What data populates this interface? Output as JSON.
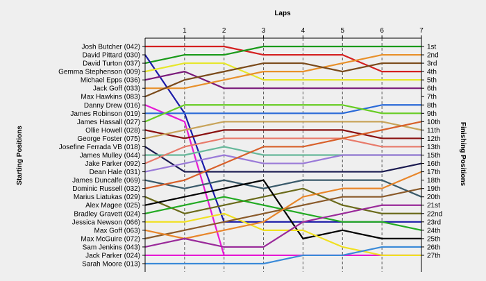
{
  "chart_data": {
    "type": "line",
    "title": "Laps",
    "ylabel_left": "Starting Positions",
    "ylabel_right": "Finishing Positions",
    "x": [
      0,
      1,
      2,
      3,
      4,
      5,
      6,
      7
    ],
    "x_tick_labels": [
      "1",
      "2",
      "3",
      "4",
      "5",
      "6",
      "7"
    ],
    "ylim": [
      1,
      27
    ],
    "finish_labels": [
      "1st",
      "2nd",
      "3rd",
      "4th",
      "5th",
      "6th",
      "7th",
      "8th",
      "9th",
      "10th",
      "11th",
      "12th",
      "13th",
      "15th",
      "16th",
      "17th",
      "18th",
      "19th",
      "20th",
      "21st",
      "22nd",
      "23rd",
      "24th",
      "25th",
      "26th",
      "27th"
    ],
    "finish_label_rows": [
      1,
      2,
      3,
      4,
      5,
      6,
      7,
      8,
      9,
      10,
      11,
      12,
      13,
      14,
      15,
      16,
      17,
      18,
      19,
      20,
      21,
      22,
      23,
      24,
      25,
      26
    ],
    "series": [
      {
        "name": "Josh Butcher (042)",
        "color": "#d42020",
        "positions": [
          1,
          1,
          1,
          2,
          2,
          2,
          4,
          4
        ]
      },
      {
        "name": "David Turton (037)",
        "color": "#1a9a1a",
        "positions": [
          3,
          2,
          2,
          1,
          1,
          1,
          1,
          1
        ]
      },
      {
        "name": "David Pittard (030)",
        "color": "#1a1aa8",
        "positions": [
          2,
          9,
          22,
          22,
          22,
          22,
          22,
          22
        ]
      },
      {
        "name": "Gemma Stephenson (009)",
        "color": "#e6e62a",
        "positions": [
          4,
          3,
          3,
          5,
          5,
          5,
          5,
          5
        ]
      },
      {
        "name": "Michael Epps (036)",
        "color": "#7a1a7a",
        "positions": [
          5,
          4,
          6,
          6,
          6,
          6,
          6,
          6
        ]
      },
      {
        "name": "Jack Goff (033)",
        "color": "#e8902a",
        "positions": [
          6,
          6,
          5,
          4,
          4,
          3,
          2,
          2
        ]
      },
      {
        "name": "Max Hawkins (083)",
        "color": "#7a4a1a",
        "positions": [
          7,
          5,
          4,
          3,
          3,
          4,
          3,
          3
        ]
      },
      {
        "name": "Danny Drew (016)",
        "color": "#e61ad4",
        "positions": [
          8,
          10,
          26,
          26,
          26,
          26,
          26,
          26
        ]
      },
      {
        "name": "James Robinson (019)",
        "color": "#2a6ad8",
        "positions": [
          9,
          9,
          9,
          9,
          9,
          9,
          8,
          8
        ]
      },
      {
        "name": "James Hassall (027)",
        "color": "#66cc22",
        "positions": [
          10,
          8,
          8,
          8,
          8,
          8,
          9,
          9
        ]
      },
      {
        "name": "Ollie Howell (028)",
        "color": "#8a1010",
        "positions": [
          11,
          12,
          11,
          11,
          11,
          11,
          12,
          12
        ]
      },
      {
        "name": "George Foster (075)",
        "color": "#c8a45a",
        "positions": [
          12,
          11,
          10,
          10,
          10,
          10,
          10,
          11
        ]
      },
      {
        "name": "Josefine Ferrada VB (018)",
        "color": "#1a1a50",
        "positions": [
          13,
          16,
          16,
          16,
          16,
          16,
          16,
          15
        ]
      },
      {
        "name": "James Mulley (044)",
        "color": "#66b89a",
        "positions": [
          14,
          14,
          13,
          14,
          14,
          14,
          14,
          14
        ]
      },
      {
        "name": "Jake Parker (092)",
        "color": "#e87a6a",
        "positions": [
          15,
          13,
          12,
          12,
          12,
          12,
          13,
          13
        ]
      },
      {
        "name": "Dean Hale (031)",
        "color": "#9a7ad8",
        "positions": [
          16,
          15,
          14,
          15,
          15,
          14,
          14,
          14
        ]
      },
      {
        "name": "James Duncalfe (069)",
        "color": "#3a5a6a",
        "positions": [
          17,
          18,
          17,
          18,
          17,
          17,
          17,
          19
        ]
      },
      {
        "name": "Dominic Russell (032)",
        "color": "#d8602a",
        "positions": [
          18,
          17,
          15,
          13,
          13,
          12,
          11,
          10
        ]
      },
      {
        "name": "Marius Liatukas (029)",
        "color": "#6a6a1a",
        "positions": [
          19,
          21,
          20,
          19,
          18,
          20,
          21,
          21
        ]
      },
      {
        "name": "Alex Magee (025)",
        "color": "#000000",
        "positions": [
          20,
          19,
          18,
          17,
          24,
          23,
          24,
          24
        ]
      },
      {
        "name": "Bradley Gravett (024)",
        "color": "#22aa22",
        "positions": [
          21,
          20,
          19,
          20,
          21,
          22,
          22,
          23
        ]
      },
      {
        "name": "Jessica Newson (066)",
        "color": "#f0e020",
        "positions": [
          22,
          22,
          21,
          23,
          23,
          25,
          26,
          26
        ]
      },
      {
        "name": "Max McGuire (072)",
        "color": "#8a5a2a",
        "positions": [
          24,
          23,
          22,
          21,
          20,
          19,
          19,
          18
        ]
      },
      {
        "name": "Max Goff (063)",
        "color": "#e8862a",
        "positions": [
          23,
          24,
          23,
          22,
          19,
          18,
          18,
          16
        ]
      },
      {
        "name": "Sam Jenkins (043)",
        "color": "#9a2a9a",
        "positions": [
          25,
          24,
          25,
          25,
          22,
          21,
          20,
          20
        ]
      },
      {
        "name": "Jack Parker (024)",
        "color": "#e61ad4",
        "positions": [
          26,
          26,
          26,
          26
        ]
      },
      {
        "name": "Sarah Moore (013)",
        "color": "#3a8ad8",
        "positions": [
          27,
          27,
          27,
          27,
          26,
          26,
          25,
          25
        ]
      }
    ]
  }
}
